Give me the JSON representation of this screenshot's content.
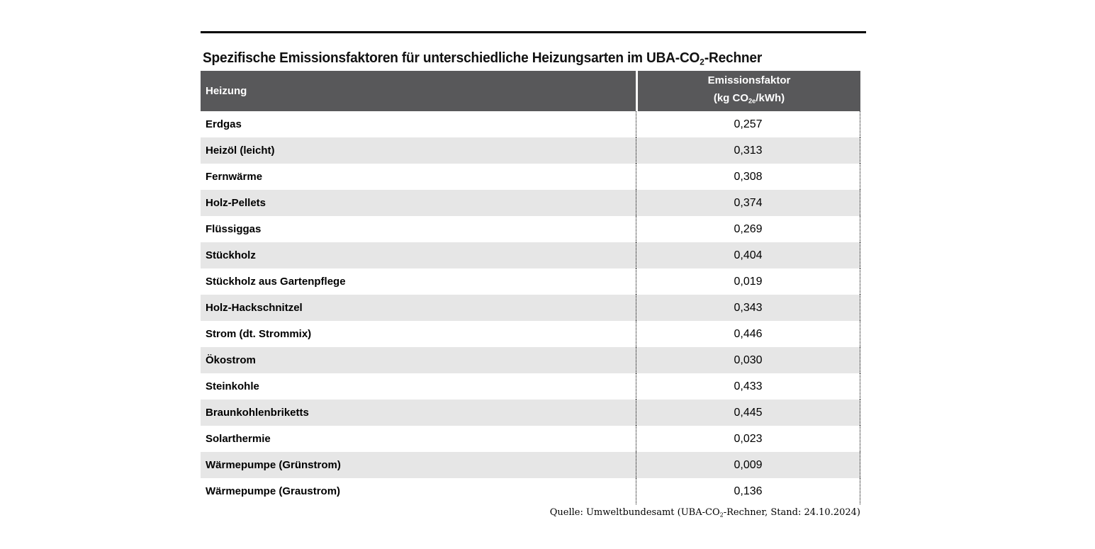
{
  "title": {
    "prefix": "Spezifische Emissionsfaktoren für unterschiedliche Heizungsarten im UBA-CO",
    "subscript": "2",
    "suffix": "-Rechner"
  },
  "table": {
    "header": {
      "heizung": "Heizung",
      "emissionsfaktor": "Emissionsfaktor",
      "unit_prefix": "(kg CO",
      "unit_subscript": "2e",
      "unit_suffix": "/kWh)"
    },
    "rows": [
      {
        "heizung": "Erdgas",
        "wert": "0,257"
      },
      {
        "heizung": "Heizöl (leicht)",
        "wert": "0,313"
      },
      {
        "heizung": "Fernwärme",
        "wert": "0,308"
      },
      {
        "heizung": "Holz-Pellets",
        "wert": "0,374"
      },
      {
        "heizung": "Flüssiggas",
        "wert": "0,269"
      },
      {
        "heizung": "Stückholz",
        "wert": "0,404"
      },
      {
        "heizung": "Stückholz aus Gartenpflege",
        "wert": "0,019"
      },
      {
        "heizung": "Holz-Hackschnitzel",
        "wert": "0,343"
      },
      {
        "heizung": "Strom (dt. Strommix)",
        "wert": "0,446"
      },
      {
        "heizung": "Ökostrom",
        "wert": "0,030"
      },
      {
        "heizung": "Steinkohle",
        "wert": "0,433"
      },
      {
        "heizung": "Braunkohlenbriketts",
        "wert": "0,445"
      },
      {
        "heizung": "Solarthermie",
        "wert": "0,023"
      },
      {
        "heizung": "Wärmepumpe (Grünstrom)",
        "wert": "0,009"
      },
      {
        "heizung": "Wärmepumpe (Graustrom)",
        "wert": "0,136"
      }
    ]
  },
  "source": {
    "prefix": "Quelle: Umweltbundesamt (UBA-CO",
    "subscript": "2",
    "suffix": "-Rechner, Stand: 24.10.2024)"
  },
  "colors": {
    "header_bg": "#58585a",
    "header_text": "#ffffff",
    "row_alt_bg": "#e6e6e6",
    "body_text": "#000000"
  },
  "chart_data": {
    "type": "table",
    "title": "Spezifische Emissionsfaktoren für unterschiedliche Heizungsarten im UBA-CO2-Rechner",
    "columns": [
      "Heizung",
      "Emissionsfaktor (kg CO2e/kWh)"
    ],
    "rows": [
      [
        "Erdgas",
        0.257
      ],
      [
        "Heizöl (leicht)",
        0.313
      ],
      [
        "Fernwärme",
        0.308
      ],
      [
        "Holz-Pellets",
        0.374
      ],
      [
        "Flüssiggas",
        0.269
      ],
      [
        "Stückholz",
        0.404
      ],
      [
        "Stückholz aus Gartenpflege",
        0.019
      ],
      [
        "Holz-Hackschnitzel",
        0.343
      ],
      [
        "Strom (dt. Strommix)",
        0.446
      ],
      [
        "Ökostrom",
        0.03
      ],
      [
        "Steinkohle",
        0.433
      ],
      [
        "Braunkohlenbriketts",
        0.445
      ],
      [
        "Solarthermie",
        0.023
      ],
      [
        "Wärmepumpe (Grünstrom)",
        0.009
      ],
      [
        "Wärmepumpe (Graustrom)",
        0.136
      ]
    ],
    "source": "Quelle: Umweltbundesamt (UBA-CO2-Rechner, Stand: 24.10.2024)"
  }
}
